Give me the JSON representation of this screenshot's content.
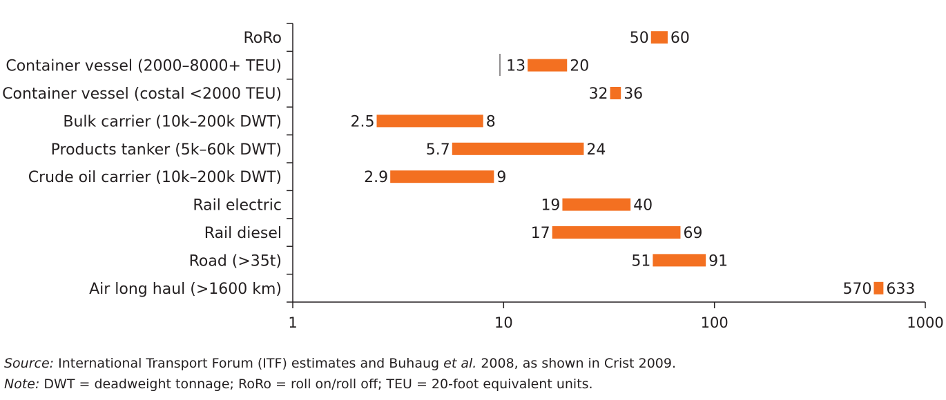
{
  "chart_data": {
    "type": "bar",
    "orientation": "horizontal",
    "range_bars": true,
    "x_scale": "log",
    "xlim": [
      1,
      1000
    ],
    "x_ticks": [
      "1",
      "10",
      "100",
      "1000"
    ],
    "bar_color": "#f37021",
    "categories": [
      "RoRo",
      "Container vessel (2000–8000+ TEU)",
      "Container vessel (costal <2000 TEU)",
      "Bulk carrier (10k–200k DWT)",
      "Products tanker (5k–60k DWT)",
      "Crude oil carrier (10k–200k DWT)",
      "Rail electric",
      "Rail diesel",
      "Road (>35t)",
      "Air long haul (>1600 km)"
    ],
    "low": [
      50,
      13,
      32,
      2.5,
      5.7,
      2.9,
      19,
      17,
      51,
      570
    ],
    "high": [
      60,
      20,
      36,
      8,
      24,
      9,
      40,
      69,
      91,
      633
    ],
    "low_labels": [
      "50",
      "13",
      "32",
      "2.5",
      "5.7",
      "2.9",
      "19",
      "17",
      "51",
      "570"
    ],
    "high_labels": [
      "60",
      "20",
      "36",
      "8",
      "24",
      "9",
      "40",
      "69",
      "91",
      "633"
    ]
  },
  "footnotes": {
    "source_prefix": "Source:",
    "source_text": " International Transport Forum (ITF) estimates and Buhaug ",
    "source_etal": "et al.",
    "source_suffix": " 2008, as shown in Crist 2009.",
    "note_prefix": "Note:",
    "note_text": " DWT = deadweight tonnage; RoRo = roll on/roll off; TEU = 20-foot equivalent units."
  }
}
